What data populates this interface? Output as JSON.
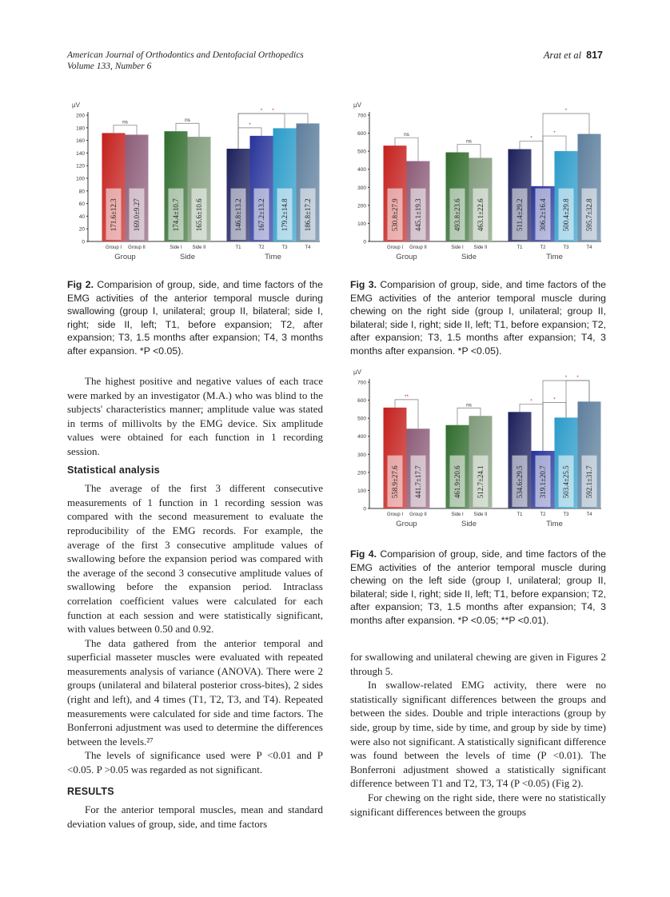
{
  "header": {
    "journal": "American Journal of Orthodontics and Dentofacial Orthopedics",
    "volume": "Volume 133, Number 6",
    "authors": "Arat et al",
    "page": "817"
  },
  "chart_data": [
    {
      "type": "bar",
      "id": "fig2",
      "ylabel": "µV",
      "ylim": [
        0,
        200
      ],
      "yticks": [
        0,
        20,
        40,
        60,
        80,
        100,
        120,
        140,
        160,
        180,
        200
      ],
      "groups": [
        "Group",
        "Side",
        "Time"
      ],
      "categories": [
        "Group I",
        "Group II",
        "Side I",
        "Side II",
        "T1",
        "T2",
        "T3",
        "T4"
      ],
      "values": [
        171.6,
        169.0,
        174.4,
        165.6,
        146.8,
        167.2,
        179.2,
        186.8
      ],
      "labels": [
        "171.6±12.3",
        "169.0±9.27",
        "174.4±10.7",
        "165.6±10.6",
        "146.8±13.2",
        "167.2±13.2",
        "179.2±14.8",
        "186.8±17.2"
      ],
      "brackets": [
        {
          "from": 0,
          "to": 1,
          "label": "ns"
        },
        {
          "from": 2,
          "to": 3,
          "label": "ns"
        },
        {
          "from": 4,
          "to": 5,
          "label": "*"
        },
        {
          "from": 4,
          "to": 6,
          "label": "*"
        },
        {
          "from": 4,
          "to": 7,
          "label": "*"
        }
      ]
    },
    {
      "type": "bar",
      "id": "fig3",
      "ylabel": "µV",
      "ylim": [
        0,
        700
      ],
      "yticks": [
        0,
        100,
        200,
        300,
        400,
        500,
        600,
        700
      ],
      "groups": [
        "Group",
        "Side",
        "Time"
      ],
      "categories": [
        "Group I",
        "Group II",
        "Side I",
        "Side II",
        "T1",
        "T2",
        "T3",
        "T4"
      ],
      "values": [
        530.8,
        445.1,
        493.8,
        463.1,
        511.4,
        306.2,
        500.4,
        595.7
      ],
      "labels": [
        "530.8±27.9",
        "445.1±19.3",
        "493.8±23.6",
        "463.1±22.6",
        "511.4±29.2",
        "306.2±16.4",
        "500.4±29.8",
        "595.7±32.8"
      ],
      "brackets": [
        {
          "from": 0,
          "to": 1,
          "label": "ns"
        },
        {
          "from": 2,
          "to": 3,
          "label": "ns"
        },
        {
          "from": 4,
          "to": 5,
          "label": "*"
        },
        {
          "from": 5,
          "to": 6,
          "label": "*"
        },
        {
          "from": 5,
          "to": 7,
          "label": "*"
        }
      ]
    },
    {
      "type": "bar",
      "id": "fig4",
      "ylabel": "µV",
      "ylim": [
        0,
        700
      ],
      "yticks": [
        0,
        100,
        200,
        300,
        400,
        500,
        600,
        700
      ],
      "groups": [
        "Group",
        "Side",
        "Time"
      ],
      "categories": [
        "Group I",
        "Group II",
        "Side I",
        "Side II",
        "T1",
        "T2",
        "T3",
        "T4"
      ],
      "values": [
        558.9,
        441.7,
        461.9,
        512.7,
        534.6,
        319.1,
        503.4,
        592.1
      ],
      "labels": [
        "558.9±27.6",
        "441.7±17.7",
        "461.9±20.6",
        "512.7±24.1",
        "534.6±29.5",
        "319.1±20.7",
        "503.4±25.5",
        "592.1±31.7"
      ],
      "brackets": [
        {
          "from": 0,
          "to": 1,
          "label": "**"
        },
        {
          "from": 2,
          "to": 3,
          "label": "ns"
        },
        {
          "from": 4,
          "to": 5,
          "label": "*"
        },
        {
          "from": 5,
          "to": 6,
          "label": "*"
        },
        {
          "from": 5,
          "to": 7,
          "label": "*"
        },
        {
          "from": 6,
          "to": 7,
          "label": "*"
        }
      ]
    }
  ],
  "bar_colors": [
    "#c41f1c",
    "#8c5c78",
    "#2f6b2c",
    "#7f9a7a",
    "#1b1f5a",
    "#28339a",
    "#2a9bc9",
    "#5d7e9c"
  ],
  "captions": {
    "fig2_label": "Fig 2.",
    "fig2_text": " Comparision of group, side, and time factors of the EMG activities of the anterior temporal muscle during swallowing (group I, unilateral; group II, bilateral; side I, right; side II, left; T1, before expansion; T2, after expansion; T3, 1.5 months after expansion; T4, 3 months after expansion. *P <0.05).",
    "fig3_label": "Fig 3.",
    "fig3_text": " Comparision of group, side, and time factors of the EMG activities of the anterior temporal muscle during chewing on the right side (group I, unilateral; group II, bilateral; side I, right; side II, left; T1, before expansion; T2, after expansion; T3, 1.5 months after expansion; T4, 3 months after expansion. *P <0.05).",
    "fig4_label": "Fig 4.",
    "fig4_text": " Comparision of group, side, and time factors of the EMG activities of the anterior temporal muscle during chewing on the left side (group I, unilateral; group II, bilateral; side I, right; side II, left; T1, before expansion; T2, after expansion; T3, 1.5 months after expansion; T4, 3 months after expansion. *P <0.05; **P <0.01)."
  },
  "left_column": {
    "p1": "The highest positive and negative values of each trace were marked by an investigator (M.A.) who was blind to the subjects' characteristics manner; amplitude value was stated in terms of millivolts by the EMG device. Six amplitude values were obtained for each function in 1 recording session.",
    "h_stat": "Statistical analysis",
    "p2": "The average of the first 3 different consecutive measurements of 1 function in 1 recording session was compared with the second measurement to evaluate the reproducibility of the EMG records. For example, the average of the first 3 consecutive amplitude values of swallowing before the expansion period was compared with the average of the second 3 consecutive amplitude values of swallowing before the expansion period. Intraclass correlation coefficient values were calculated for each function at each session and were statistically significant, with values between 0.50 and 0.92.",
    "p3": "The data gathered from the anterior temporal and superficial masseter muscles were evaluated with repeated measurements analysis of variance (ANOVA). There were 2 groups (unilateral and bilateral posterior cross-bites), 2 sides (right and left), and 4 times (T1, T2, T3, and T4). Repeated measurements were calculated for side and time factors. The Bonferroni adjustment was used to determine the differences between the levels.²⁷",
    "p4": "The levels of significance used were P <0.01 and P <0.05. P >0.05 was regarded as not significant.",
    "h_results": "RESULTS",
    "p5": "For the anterior temporal muscles, mean and standard deviation values of group, side, and time factors"
  },
  "right_column": {
    "p1": "for swallowing and unilateral chewing are given in Figures 2 through 5.",
    "p2": "In swallow-related EMG activity, there were no statistically significant differences between the groups and between the sides. Double and triple interactions (group by side, group by time, side by time, and group by side by time) were also not significant. A statistically significant difference was found between the levels of time (P <0.01). The Bonferroni adjustment showed a statistically significant difference between T1 and T2, T3, T4 (P <0.05) (Fig 2).",
    "p3": "For chewing on the right side, there were no statistically significant differences between the groups"
  }
}
